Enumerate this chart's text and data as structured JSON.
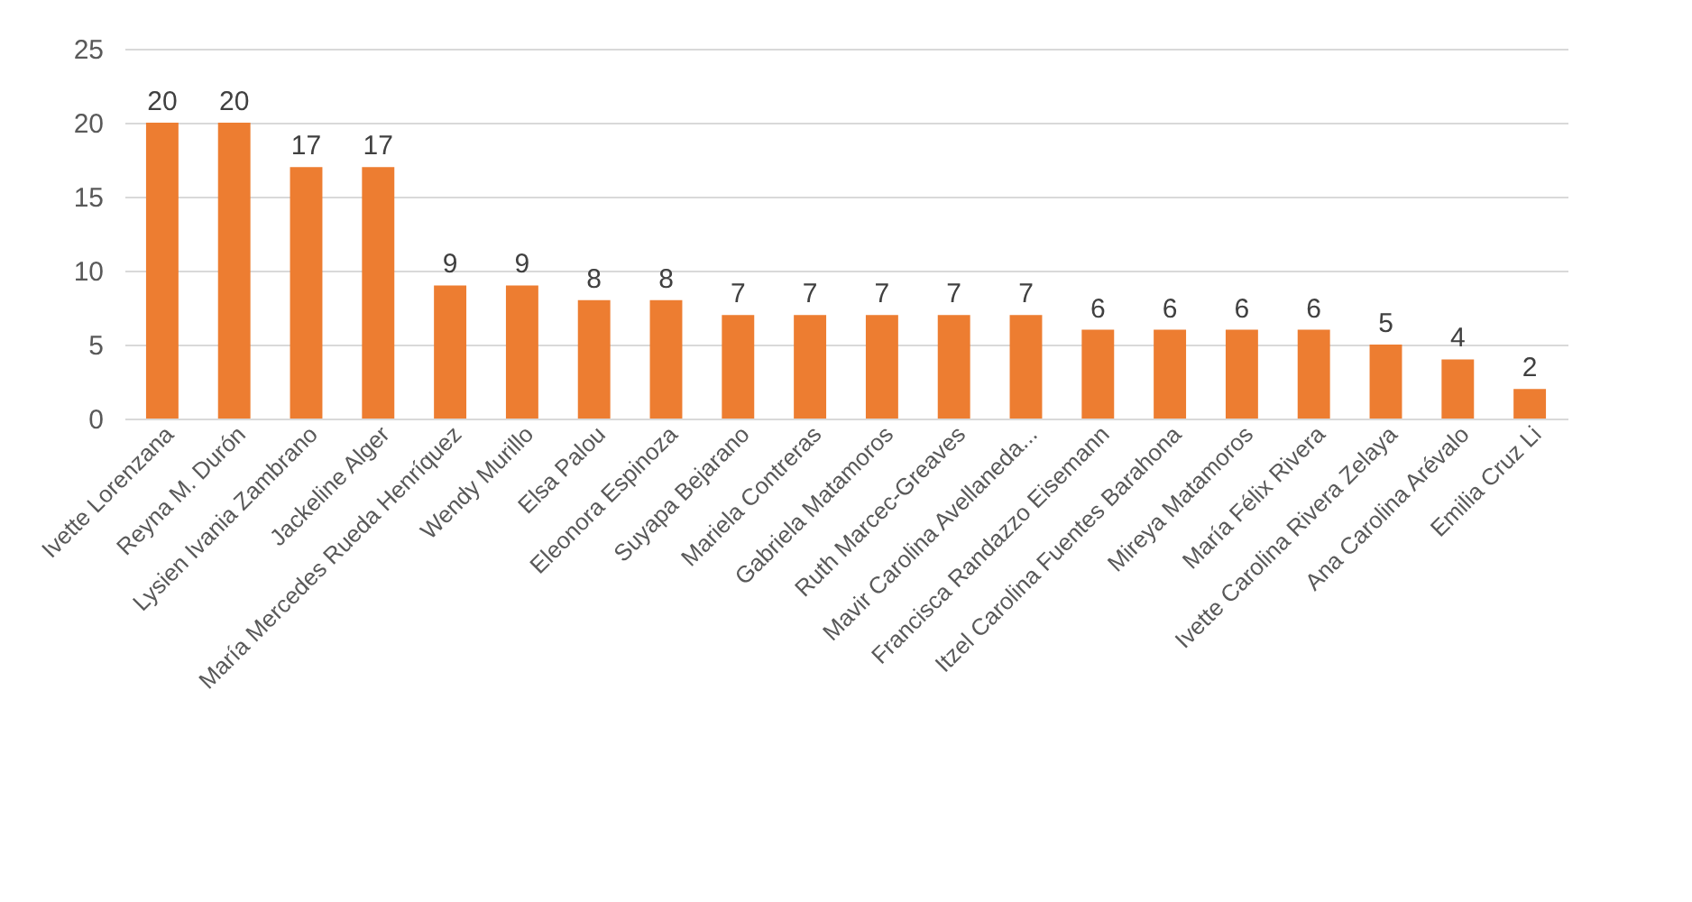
{
  "chart_data": {
    "type": "bar",
    "categories": [
      "Ivette Lorenzana",
      "Reyna M. Durón",
      "Lysien Ivania Zambrano",
      "Jackeline Alger",
      "María Mercedes Rueda Henríquez",
      "Wendy Murillo",
      "Elsa Palou",
      "Eleonora Espinoza",
      "Suyapa Bejarano",
      "Mariela Contreras",
      "Gabriela Matamoros",
      "Ruth Marcec-Greaves",
      "Mavir Carolina Avellaneda...",
      "Francisca Randazzo Eisemann",
      "Itzel Carolina Fuentes Barahona",
      "Mireya Matamoros",
      "María Félix Rivera",
      "Ivette Carolina Rivera Zelaya",
      "Ana Carolina Arévalo",
      "Emilia Cruz Li"
    ],
    "values": [
      20,
      20,
      17,
      17,
      9,
      9,
      8,
      8,
      7,
      7,
      7,
      7,
      7,
      6,
      6,
      6,
      6,
      5,
      4,
      2
    ],
    "color": "#ed7d31",
    "ylim": [
      0,
      25
    ],
    "yticks": [
      0,
      5,
      10,
      15,
      20,
      25
    ],
    "grid": "y",
    "data_labels": true
  }
}
